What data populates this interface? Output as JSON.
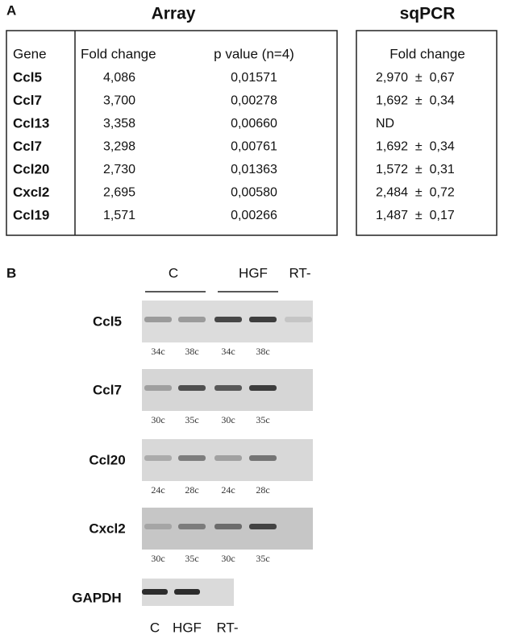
{
  "panel_a": {
    "label": "A",
    "array_title": "Array",
    "sqpcr_title": "sqPCR",
    "array_table": {
      "headers": [
        "Gene",
        "Fold change",
        "p value (n=4)"
      ],
      "rows": [
        [
          "Ccl5",
          "4,086",
          "0,01571"
        ],
        [
          "Ccl7",
          "3,700",
          "0,00278"
        ],
        [
          "Ccl13",
          "3,358",
          "0,00660"
        ],
        [
          "Ccl7",
          "3,298",
          "0,00761"
        ],
        [
          "Ccl20",
          "2,730",
          "0,01363"
        ],
        [
          "Cxcl2",
          "2,695",
          "0,00580"
        ],
        [
          "Ccl19",
          "1,571",
          "0,00266"
        ]
      ]
    },
    "sqpcr_table": {
      "header": "Fold change",
      "rows": [
        "2,970  ±  0,67",
        "1,692  ±  0,34",
        "ND",
        "1,692  ±  0,34",
        "1,572  ±  0,31",
        "2,484  ±  0,72",
        "1,487  ±  0,17"
      ]
    }
  },
  "panel_b": {
    "label": "B",
    "groups": [
      "C",
      "HGF",
      "RT-"
    ],
    "gels": [
      {
        "gene": "Ccl5",
        "cycles": [
          "34c",
          "38c",
          "34c",
          "38c"
        ]
      },
      {
        "gene": "Ccl7",
        "cycles": [
          "30c",
          "35c",
          "30c",
          "35c"
        ]
      },
      {
        "gene": "Ccl20",
        "cycles": [
          "24c",
          "28c",
          "24c",
          "28c"
        ]
      },
      {
        "gene": "Cxcl2",
        "cycles": [
          "30c",
          "35c",
          "30c",
          "35c"
        ]
      }
    ],
    "control": {
      "gene": "GAPDH",
      "lanes": [
        "C",
        "HGF",
        "RT-"
      ]
    }
  }
}
